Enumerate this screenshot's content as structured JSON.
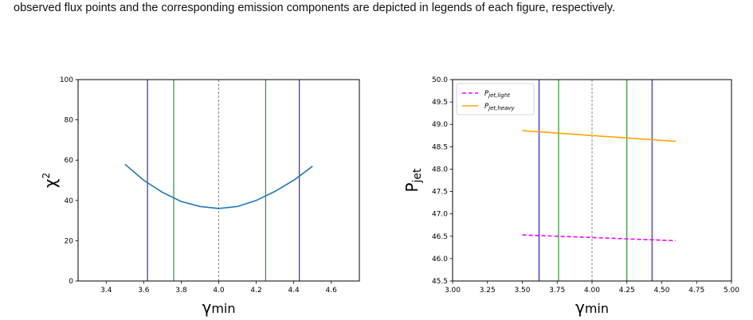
{
  "caption": "observed flux points and the corresponding emission components are depicted in legends of each figure, respectively.",
  "chart_data": [
    {
      "type": "line",
      "xlabel": "γmin",
      "ylabel": "χ2",
      "xlim": [
        3.25,
        4.75
      ],
      "ylim": [
        0,
        100
      ],
      "xticks": [
        "3.4",
        "3.6",
        "3.8",
        "4.0",
        "4.2",
        "4.4",
        "4.6"
      ],
      "yticks": [
        "0",
        "20",
        "40",
        "60",
        "80",
        "100"
      ],
      "grid": false,
      "series": [
        {
          "color": "#1f77b4",
          "x": [
            3.5,
            3.6,
            3.7,
            3.8,
            3.9,
            4.0,
            4.1,
            4.2,
            4.3,
            4.4,
            4.5
          ],
          "y": [
            58,
            50,
            44,
            39.5,
            37,
            36,
            37,
            40,
            44.5,
            50,
            57
          ]
        }
      ],
      "vlines": [
        {
          "x": 3.62,
          "color": "#0000cc",
          "style": "solid"
        },
        {
          "x": 3.76,
          "color": "#008000",
          "style": "solid"
        },
        {
          "x": 4.0,
          "color": "#888888",
          "style": "dashed"
        },
        {
          "x": 4.25,
          "color": "#008000",
          "style": "solid"
        },
        {
          "x": 4.43,
          "color": "#0000cc",
          "style": "solid"
        }
      ]
    },
    {
      "type": "line",
      "xlabel": "γmin",
      "ylabel": "Pjet",
      "xlim": [
        3.0,
        5.0
      ],
      "ylim": [
        45.5,
        50.0
      ],
      "xticks": [
        "3.00",
        "3.25",
        "3.50",
        "3.75",
        "4.00",
        "4.25",
        "4.50",
        "4.75",
        "5.00"
      ],
      "yticks": [
        "45.5",
        "46.0",
        "46.5",
        "47.0",
        "47.5",
        "48.0",
        "48.5",
        "49.0",
        "49.5",
        "50.0"
      ],
      "grid": false,
      "legend_position": "top-left",
      "series": [
        {
          "name": "Pjet,light",
          "color": "#ff00ff",
          "style": "dashed",
          "x": [
            3.5,
            4.6
          ],
          "y": [
            46.53,
            46.4
          ]
        },
        {
          "name": "Pjet,heavy",
          "color": "#ffa500",
          "style": "solid",
          "x": [
            3.5,
            4.6
          ],
          "y": [
            48.86,
            48.62
          ]
        }
      ],
      "vlines": [
        {
          "x": 3.62,
          "color": "#0000cc",
          "style": "solid"
        },
        {
          "x": 3.76,
          "color": "#008000",
          "style": "solid"
        },
        {
          "x": 4.0,
          "color": "#888888",
          "style": "dashed"
        },
        {
          "x": 4.25,
          "color": "#008000",
          "style": "solid"
        },
        {
          "x": 4.43,
          "color": "#0000cc",
          "style": "solid"
        }
      ]
    }
  ]
}
